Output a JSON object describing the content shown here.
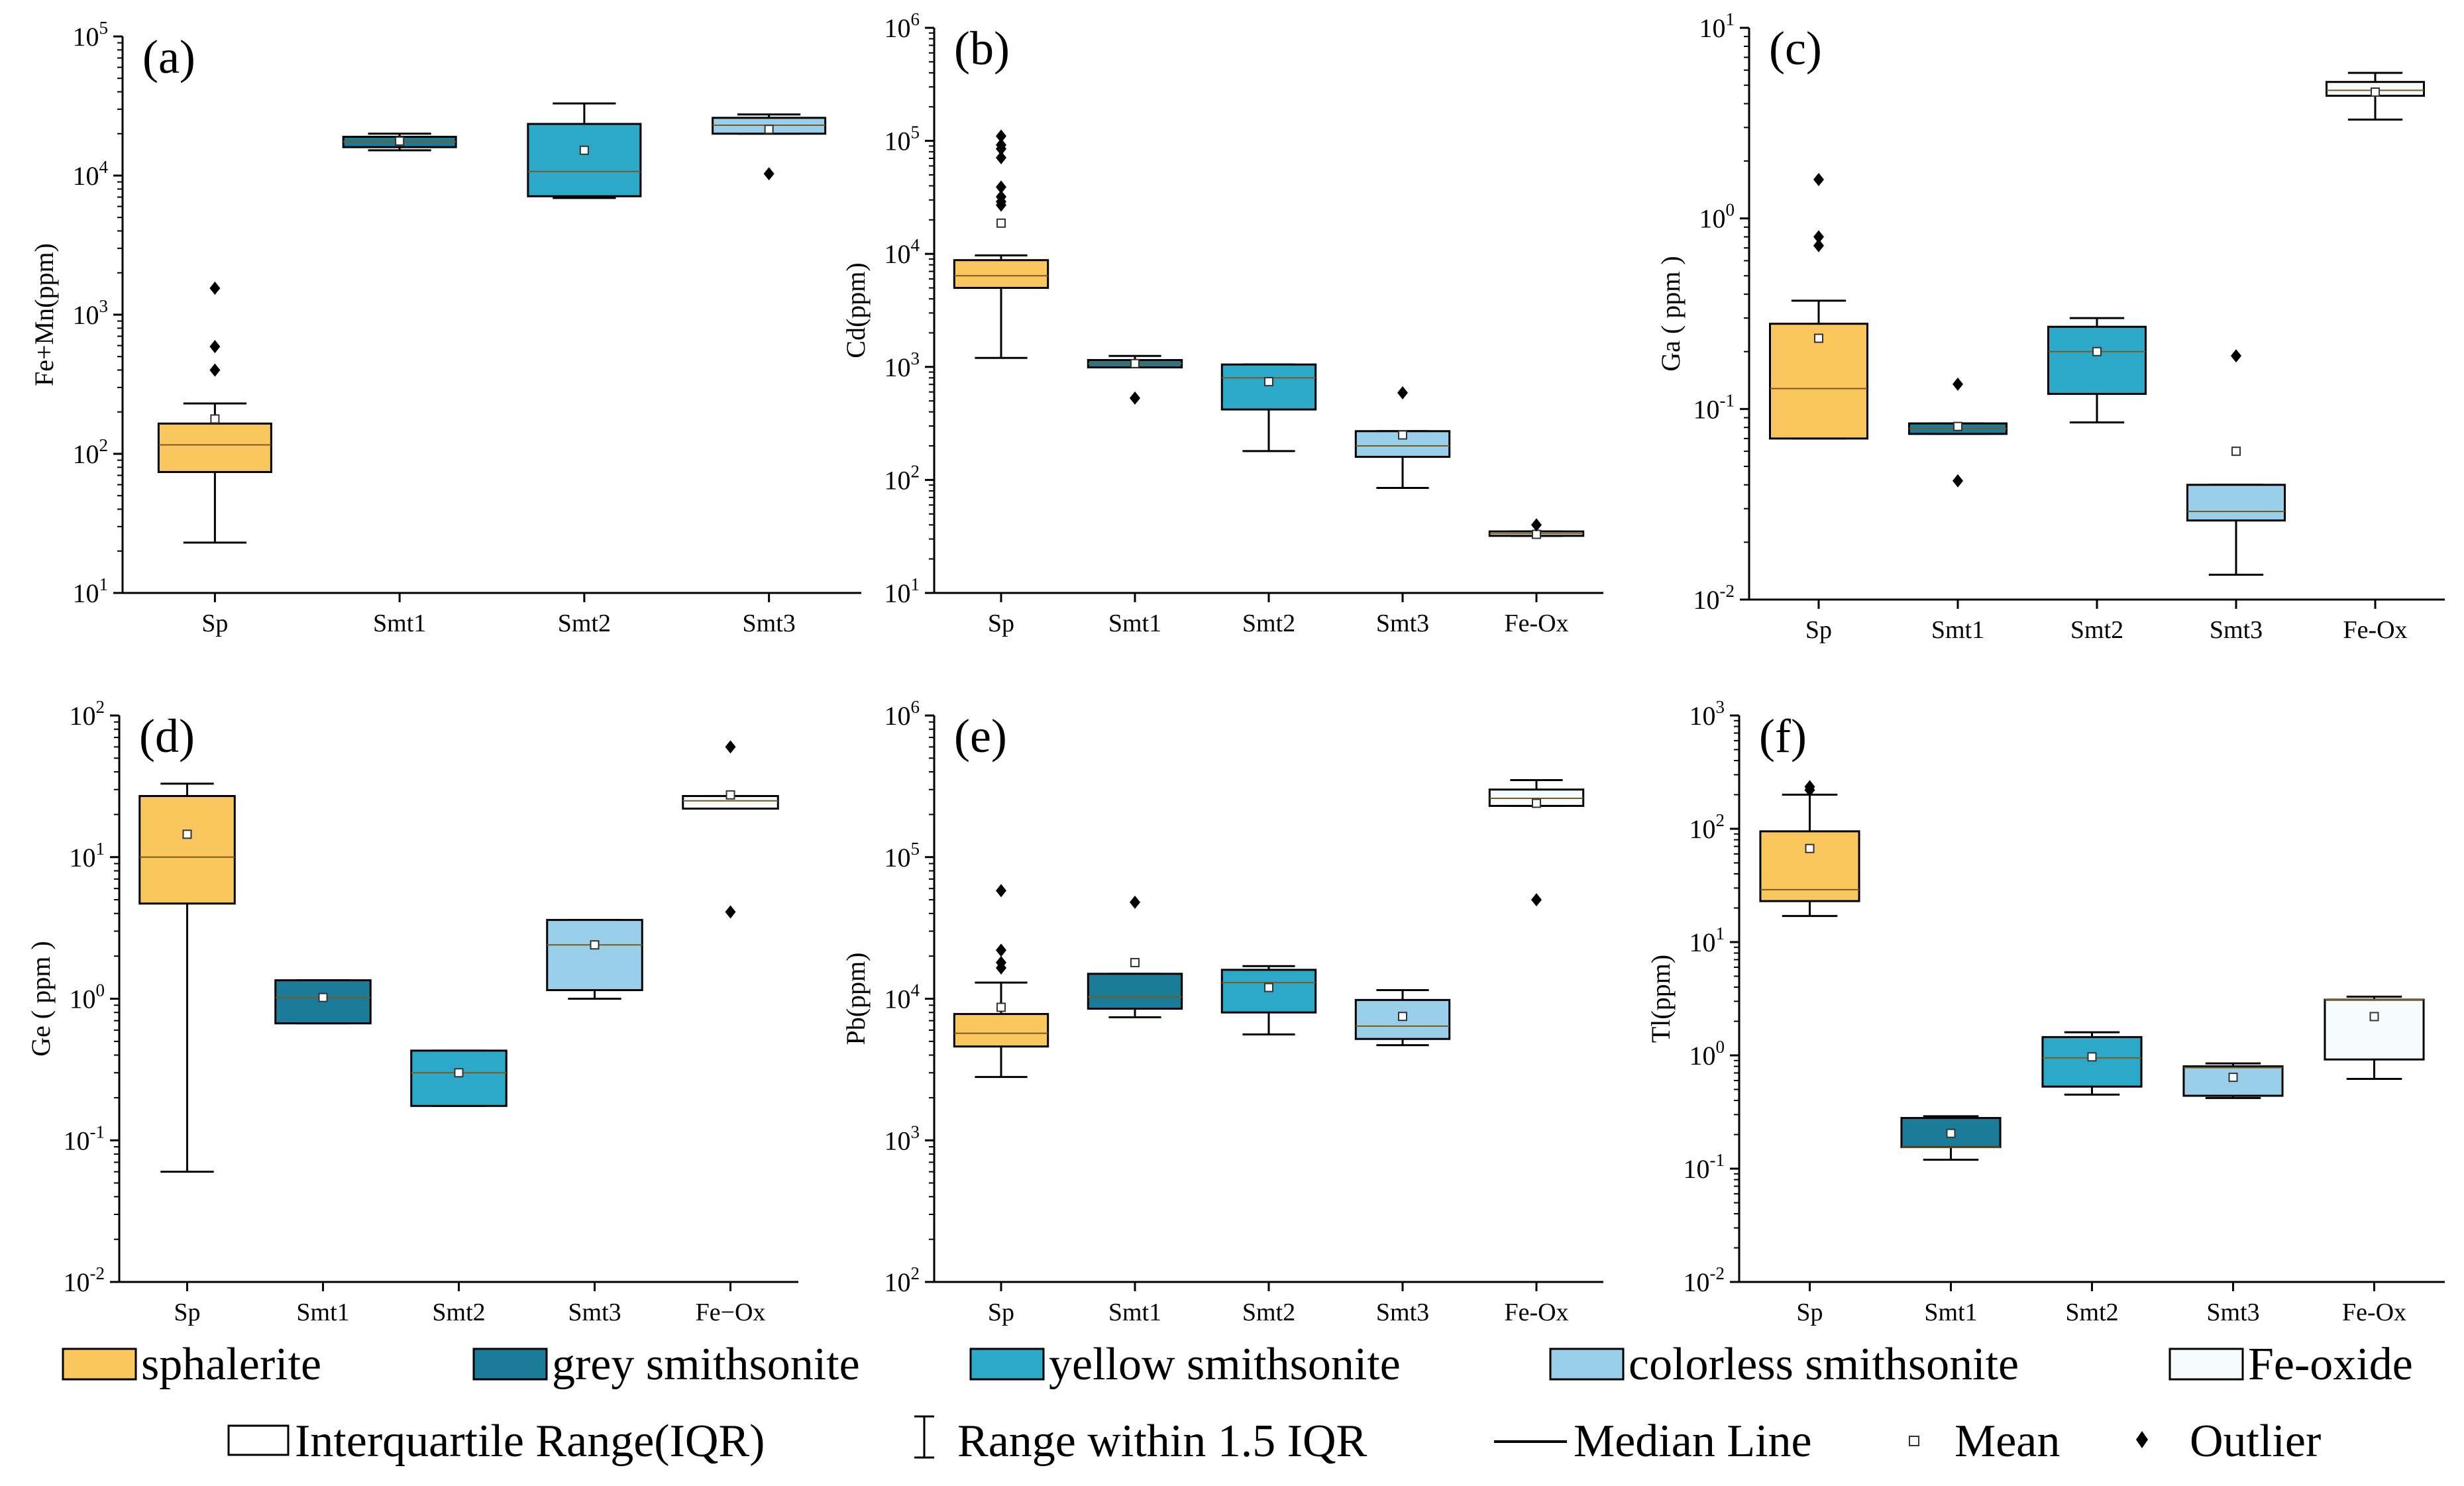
{
  "chart_data": [
    {
      "type": "box",
      "panel_label": "(a)",
      "ylabel": "Fe+Mn(ppm)",
      "yscale": "log",
      "ylim_exp": [
        1,
        5
      ],
      "categories": [
        "Sp",
        "Smt1",
        "Smt2",
        "Smt3"
      ],
      "boxes": [
        {
          "series": "sphalerite",
          "whislo": 23,
          "q1": 74,
          "med": 116,
          "q3": 165,
          "whishi": 230,
          "mean": 178,
          "fliers": [
            400,
            590,
            1550
          ]
        },
        {
          "series": "grey smithsonite",
          "whislo": 15200,
          "q1": 16000,
          "med": 17500,
          "q3": 19000,
          "whishi": 20000,
          "mean": 17700,
          "fliers": []
        },
        {
          "series": "yellow smithsonite",
          "whislo": 6900,
          "q1": 7100,
          "med": 10700,
          "q3": 23500,
          "whishi": 33000,
          "mean": 15200,
          "fliers": []
        },
        {
          "series": "colorless smithsonite",
          "whislo": 20000,
          "q1": 20000,
          "med": 23000,
          "q3": 26000,
          "whishi": 27500,
          "mean": 21500,
          "fliers": [
            10300
          ]
        }
      ]
    },
    {
      "type": "box",
      "panel_label": "(b)",
      "ylabel": "Cd(ppm)",
      "yscale": "log",
      "ylim_exp": [
        1,
        6
      ],
      "categories": [
        "Sp",
        "Smt1",
        "Smt2",
        "Smt3",
        "Fe-Ox"
      ],
      "boxes": [
        {
          "series": "sphalerite",
          "whislo": 1200,
          "q1": 5000,
          "med": 6400,
          "q3": 8800,
          "whishi": 9700,
          "mean": 18700,
          "fliers": [
            27000,
            29000,
            32000,
            39000,
            71000,
            85000,
            92000,
            110000
          ]
        },
        {
          "series": "grey smithsonite",
          "whislo": 990,
          "q1": 990,
          "med": 1070,
          "q3": 1150,
          "whishi": 1250,
          "mean": 1070,
          "fliers": [
            530
          ]
        },
        {
          "series": "yellow smithsonite",
          "whislo": 180,
          "q1": 420,
          "med": 800,
          "q3": 1050,
          "whishi": 1050,
          "mean": 740,
          "fliers": []
        },
        {
          "series": "colorless smithsonite",
          "whislo": 85,
          "q1": 160,
          "med": 200,
          "q3": 270,
          "whishi": 270,
          "mean": 250,
          "fliers": [
            590
          ]
        },
        {
          "series": "Fe-oxide",
          "whislo": 32,
          "q1": 32,
          "med": 33.5,
          "q3": 35,
          "whishi": 35,
          "mean": 33,
          "fliers": [
            40
          ]
        }
      ]
    },
    {
      "type": "box",
      "panel_label": "(c)",
      "ylabel": "Ga ( ppm )",
      "yscale": "log",
      "ylim_exp": [
        -2,
        1
      ],
      "categories": [
        "Sp",
        "Smt1",
        "Smt2",
        "Smt3",
        "Fe-Ox"
      ],
      "boxes": [
        {
          "series": "sphalerite",
          "whislo": 0.07,
          "q1": 0.07,
          "med": 0.128,
          "q3": 0.28,
          "whishi": 0.37,
          "mean": 0.235,
          "fliers": [
            0.72,
            0.8,
            1.6
          ]
        },
        {
          "series": "grey smithsonite",
          "whislo": 0.074,
          "q1": 0.074,
          "med": 0.079,
          "q3": 0.084,
          "whishi": 0.084,
          "mean": 0.081,
          "fliers": [
            0.042,
            0.135
          ]
        },
        {
          "series": "yellow smithsonite",
          "whislo": 0.085,
          "q1": 0.12,
          "med": 0.2,
          "q3": 0.27,
          "whishi": 0.3,
          "mean": 0.2,
          "fliers": []
        },
        {
          "series": "colorless smithsonite",
          "whislo": 0.0135,
          "q1": 0.026,
          "med": 0.029,
          "q3": 0.04,
          "whishi": 0.04,
          "mean": 0.06,
          "fliers": [
            0.19
          ]
        },
        {
          "series": "Fe-oxide",
          "whislo": 3.3,
          "q1": 4.4,
          "med": 4.7,
          "q3": 5.2,
          "whishi": 5.8,
          "mean": 4.6,
          "fliers": []
        }
      ]
    },
    {
      "type": "box",
      "panel_label": "(d)",
      "ylabel": "Ge ( ppm )",
      "yscale": "log",
      "ylim_exp": [
        -2,
        2
      ],
      "categories": [
        "Sp",
        "Smt1",
        "Smt2",
        "Smt3",
        "Fe−Ox"
      ],
      "boxes": [
        {
          "series": "sphalerite",
          "whislo": 0.06,
          "q1": 4.7,
          "med": 10,
          "q3": 27,
          "whishi": 33,
          "mean": 14.5,
          "fliers": []
        },
        {
          "series": "grey smithsonite",
          "whislo": 0.67,
          "q1": 0.67,
          "med": 1.02,
          "q3": 1.35,
          "whishi": 1.35,
          "mean": 1.02,
          "fliers": []
        },
        {
          "series": "yellow smithsonite",
          "whislo": 0.175,
          "q1": 0.175,
          "med": 0.3,
          "q3": 0.43,
          "whishi": 0.43,
          "mean": 0.3,
          "fliers": []
        },
        {
          "series": "colorless smithsonite",
          "whislo": 1.0,
          "q1": 1.15,
          "med": 2.4,
          "q3": 3.6,
          "whishi": 3.6,
          "mean": 2.4,
          "fliers": []
        },
        {
          "series": "Fe-oxide",
          "whislo": 22,
          "q1": 22,
          "med": 25,
          "q3": 27,
          "whishi": 27,
          "mean": 27.5,
          "fliers": [
            4.1,
            60
          ]
        }
      ]
    },
    {
      "type": "box",
      "panel_label": "(e)",
      "ylabel": "Pb(ppm)",
      "yscale": "log",
      "ylim_exp": [
        2,
        6
      ],
      "categories": [
        "Sp",
        "Smt1",
        "Smt2",
        "Smt3",
        "Fe-Ox"
      ],
      "boxes": [
        {
          "series": "sphalerite",
          "whislo": 2800,
          "q1": 4600,
          "med": 5700,
          "q3": 7800,
          "whishi": 13000,
          "mean": 8700,
          "fliers": [
            16500,
            18000,
            22000,
            58000
          ]
        },
        {
          "series": "grey smithsonite",
          "whislo": 7400,
          "q1": 8500,
          "med": 10300,
          "q3": 15000,
          "whishi": 15000,
          "mean": 18000,
          "fliers": [
            48000
          ]
        },
        {
          "series": "yellow smithsonite",
          "whislo": 5600,
          "q1": 8000,
          "med": 13000,
          "q3": 16000,
          "whishi": 17000,
          "mean": 12000,
          "fliers": []
        },
        {
          "series": "colorless smithsonite",
          "whislo": 4700,
          "q1": 5200,
          "med": 6400,
          "q3": 9800,
          "whishi": 11500,
          "mean": 7500,
          "fliers": []
        },
        {
          "series": "Fe-oxide",
          "whislo": 230000,
          "q1": 230000,
          "med": 260000,
          "q3": 300000,
          "whishi": 350000,
          "mean": 240000,
          "fliers": [
            50000
          ]
        }
      ]
    },
    {
      "type": "box",
      "panel_label": "(f)",
      "ylabel": "Tl(ppm)",
      "yscale": "log",
      "ylim_exp": [
        -2,
        3
      ],
      "categories": [
        "Sp",
        "Smt1",
        "Smt2",
        "Smt3",
        "Fe-Ox"
      ],
      "boxes": [
        {
          "series": "sphalerite",
          "whislo": 17,
          "q1": 23,
          "med": 29,
          "q3": 95,
          "whishi": 200,
          "mean": 67,
          "fliers": [
            220,
            235
          ]
        },
        {
          "series": "grey smithsonite",
          "whislo": 0.12,
          "q1": 0.155,
          "med": 0.155,
          "q3": 0.28,
          "whishi": 0.29,
          "mean": 0.205,
          "fliers": []
        },
        {
          "series": "yellow smithsonite",
          "whislo": 0.45,
          "q1": 0.53,
          "med": 0.95,
          "q3": 1.45,
          "whishi": 1.6,
          "mean": 0.97,
          "fliers": []
        },
        {
          "series": "colorless smithsonite",
          "whislo": 0.42,
          "q1": 0.44,
          "med": 0.78,
          "q3": 0.8,
          "whishi": 0.85,
          "mean": 0.64,
          "fliers": []
        },
        {
          "series": "Fe-oxide",
          "whislo": 0.62,
          "q1": 0.92,
          "med": 3.1,
          "q3": 3.1,
          "whishi": 3.3,
          "mean": 2.2,
          "fliers": []
        }
      ]
    }
  ],
  "series_colors": {
    "sphalerite": "#FAC75E",
    "grey smithsonite": "#1B7C9A",
    "yellow smithsonite": "#2CA9C9",
    "colorless smithsonite": "#9ACFEA",
    "Fe-oxide": "#F6FBFE"
  },
  "legend": {
    "row1": [
      {
        "label": "sphalerite",
        "color": "#FAC75E"
      },
      {
        "label": "grey smithsonite",
        "color": "#1B7C9A"
      },
      {
        "label": "yellow smithsonite",
        "color": "#2CA9C9"
      },
      {
        "label": "colorless smithsonite",
        "color": "#9ACFEA"
      },
      {
        "label": "Fe-oxide",
        "color": "#F6FBFE"
      }
    ],
    "row2": [
      {
        "label": "Interquartile Range(IQR)",
        "symbol": "box"
      },
      {
        "label": "Range within 1.5 IQR",
        "symbol": "whisker"
      },
      {
        "label": "Median Line",
        "symbol": "line"
      },
      {
        "label": "Mean",
        "symbol": "square"
      },
      {
        "label": "Outlier",
        "symbol": "diamond"
      }
    ]
  }
}
